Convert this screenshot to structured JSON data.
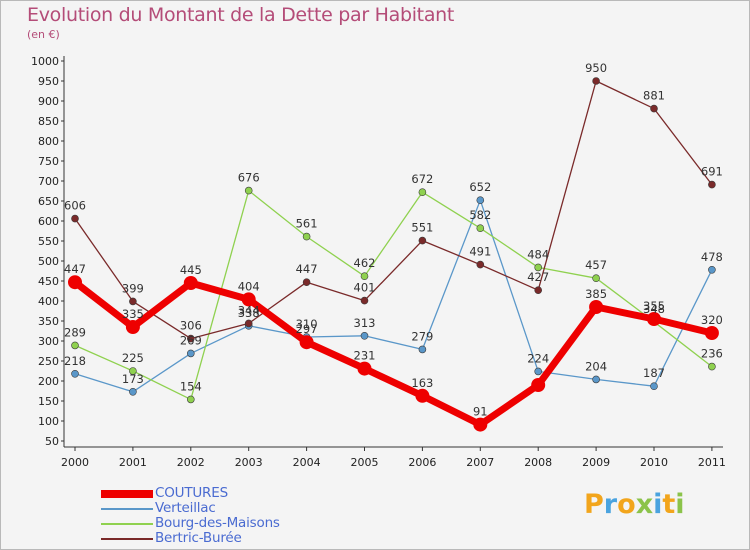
{
  "title": "Evolution du Montant de la Dette par Habitant",
  "subtitle": "(en €)",
  "logo": {
    "text": "Proxiti",
    "letters": [
      {
        "ch": "P",
        "color": "#f2a51c"
      },
      {
        "ch": "r",
        "color": "#4aa3df"
      },
      {
        "ch": "o",
        "color": "#f2a51c"
      },
      {
        "ch": "x",
        "color": "#8bc34a"
      },
      {
        "ch": "i",
        "color": "#4aa3df"
      },
      {
        "ch": "t",
        "color": "#f2a51c"
      },
      {
        "ch": "i",
        "color": "#8bc34a"
      }
    ]
  },
  "chart_data": {
    "type": "line",
    "title": "Evolution du Montant de la Dette par Habitant",
    "subtitle": "(en €)",
    "categories": [
      "2000",
      "2001",
      "2002",
      "2003",
      "2004",
      "2005",
      "2006",
      "2007",
      "2008",
      "2009",
      "2010",
      "2011"
    ],
    "ylim": [
      50,
      1000
    ],
    "yticks": [
      50,
      100,
      150,
      200,
      250,
      300,
      350,
      400,
      450,
      500,
      550,
      600,
      650,
      700,
      750,
      800,
      850,
      900,
      950,
      1000
    ],
    "grid": false,
    "legend_position": "bottom-left",
    "series": [
      {
        "name": "COUTURES",
        "color": "#ee0000",
        "width": 7,
        "marker": 7,
        "values": [
          447,
          335,
          445,
          404,
          297,
          231,
          163,
          91,
          190,
          385,
          355,
          320
        ],
        "labels": [
          447,
          335,
          445,
          404,
          297,
          231,
          163,
          91,
          null,
          385,
          355,
          320
        ]
      },
      {
        "name": "Verteillac",
        "color": "#5a97c9",
        "width": 1.3,
        "marker": 3.5,
        "values": [
          218,
          173,
          269,
          338,
          310,
          313,
          279,
          652,
          224,
          204,
          187,
          478
        ],
        "labels": [
          218,
          173,
          269,
          338,
          310,
          313,
          279,
          652,
          224,
          204,
          187,
          478
        ]
      },
      {
        "name": "Bourg-des-Maisons",
        "color": "#8fd14f",
        "width": 1.3,
        "marker": 3.5,
        "values": [
          289,
          225,
          154,
          676,
          561,
          462,
          672,
          582,
          484,
          457,
          348,
          236
        ],
        "labels": [
          289,
          225,
          154,
          676,
          561,
          462,
          672,
          582,
          484,
          457,
          348,
          236
        ]
      },
      {
        "name": "Bertric-Burée",
        "color": "#7a2a2a",
        "width": 1.3,
        "marker": 3.5,
        "values": [
          606,
          399,
          306,
          344,
          447,
          401,
          551,
          491,
          427,
          950,
          881,
          691
        ],
        "labels": [
          606,
          399,
          306,
          344,
          447,
          401,
          551,
          491,
          427,
          950,
          881,
          691
        ]
      }
    ]
  }
}
